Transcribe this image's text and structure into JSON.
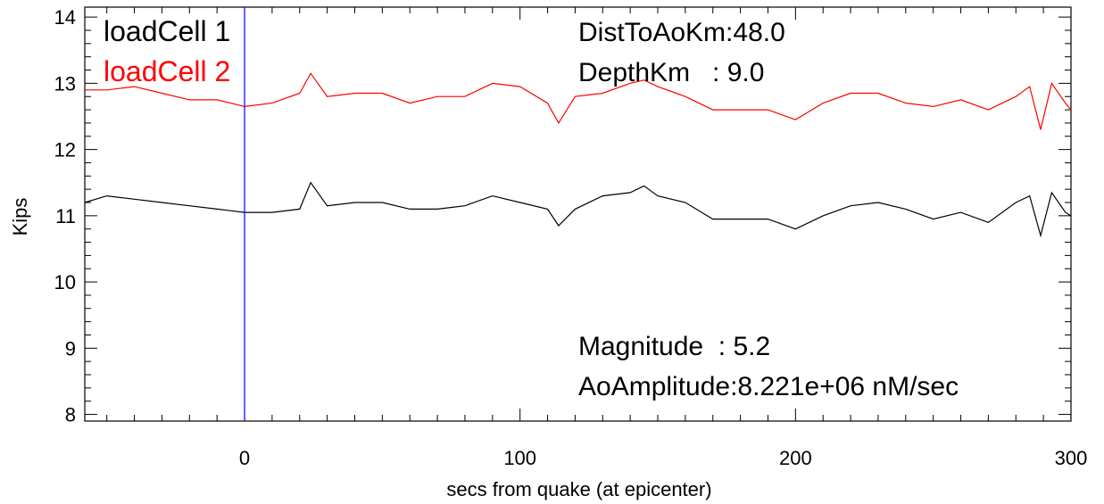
{
  "chart_data": {
    "type": "line",
    "xlabel": "secs from quake (at epicenter)",
    "ylabel": "Kips",
    "xlim": [
      -58,
      300
    ],
    "ylim": [
      7.9,
      14.15
    ],
    "xticks": [
      0,
      100,
      200,
      300
    ],
    "yticks": [
      8,
      9,
      10,
      11,
      12,
      13,
      14
    ],
    "grid": false,
    "legend_position": "top-left",
    "marker_x": 0,
    "marker_color": "#0000ff",
    "series": [
      {
        "name": "loadCell 1",
        "color": "#000000",
        "x": [
          -58,
          -50,
          -40,
          -30,
          -20,
          -10,
          0,
          10,
          20,
          24,
          30,
          40,
          50,
          60,
          70,
          80,
          90,
          100,
          110,
          114,
          120,
          130,
          140,
          145,
          150,
          160,
          170,
          180,
          190,
          200,
          210,
          220,
          230,
          240,
          250,
          260,
          270,
          280,
          285,
          289,
          293,
          298,
          300
        ],
        "values": [
          11.2,
          11.3,
          11.25,
          11.2,
          11.15,
          11.1,
          11.05,
          11.05,
          11.1,
          11.5,
          11.15,
          11.2,
          11.2,
          11.1,
          11.1,
          11.15,
          11.3,
          11.2,
          11.1,
          10.85,
          11.1,
          11.3,
          11.35,
          11.45,
          11.3,
          11.2,
          10.95,
          10.95,
          10.95,
          10.8,
          11.0,
          11.15,
          11.2,
          11.1,
          10.95,
          11.05,
          10.9,
          11.2,
          11.3,
          10.7,
          11.35,
          11.05,
          11.0
        ]
      },
      {
        "name": "loadCell 2",
        "color": "#ff0000",
        "x": [
          -58,
          -50,
          -40,
          -30,
          -20,
          -10,
          0,
          10,
          20,
          24,
          30,
          40,
          50,
          60,
          70,
          80,
          90,
          100,
          110,
          114,
          120,
          130,
          140,
          145,
          150,
          160,
          170,
          180,
          190,
          200,
          210,
          220,
          230,
          240,
          250,
          260,
          270,
          280,
          285,
          289,
          293,
          298,
          300
        ],
        "values": [
          12.9,
          12.9,
          12.95,
          12.85,
          12.75,
          12.75,
          12.65,
          12.7,
          12.85,
          13.15,
          12.8,
          12.85,
          12.85,
          12.7,
          12.8,
          12.8,
          13.0,
          12.95,
          12.7,
          12.4,
          12.8,
          12.85,
          13.0,
          13.05,
          12.95,
          12.8,
          12.6,
          12.6,
          12.6,
          12.45,
          12.7,
          12.85,
          12.85,
          12.7,
          12.65,
          12.75,
          12.6,
          12.8,
          12.95,
          12.3,
          13.0,
          12.7,
          12.6
        ]
      }
    ],
    "annotations": {
      "dist": "DistToAoKm:48.0",
      "depth": "DepthKm   : 9.0",
      "magnitude": "Magnitude  : 5.2",
      "amplitude": "AoAmplitude:8.221e+06 nM/sec"
    }
  }
}
